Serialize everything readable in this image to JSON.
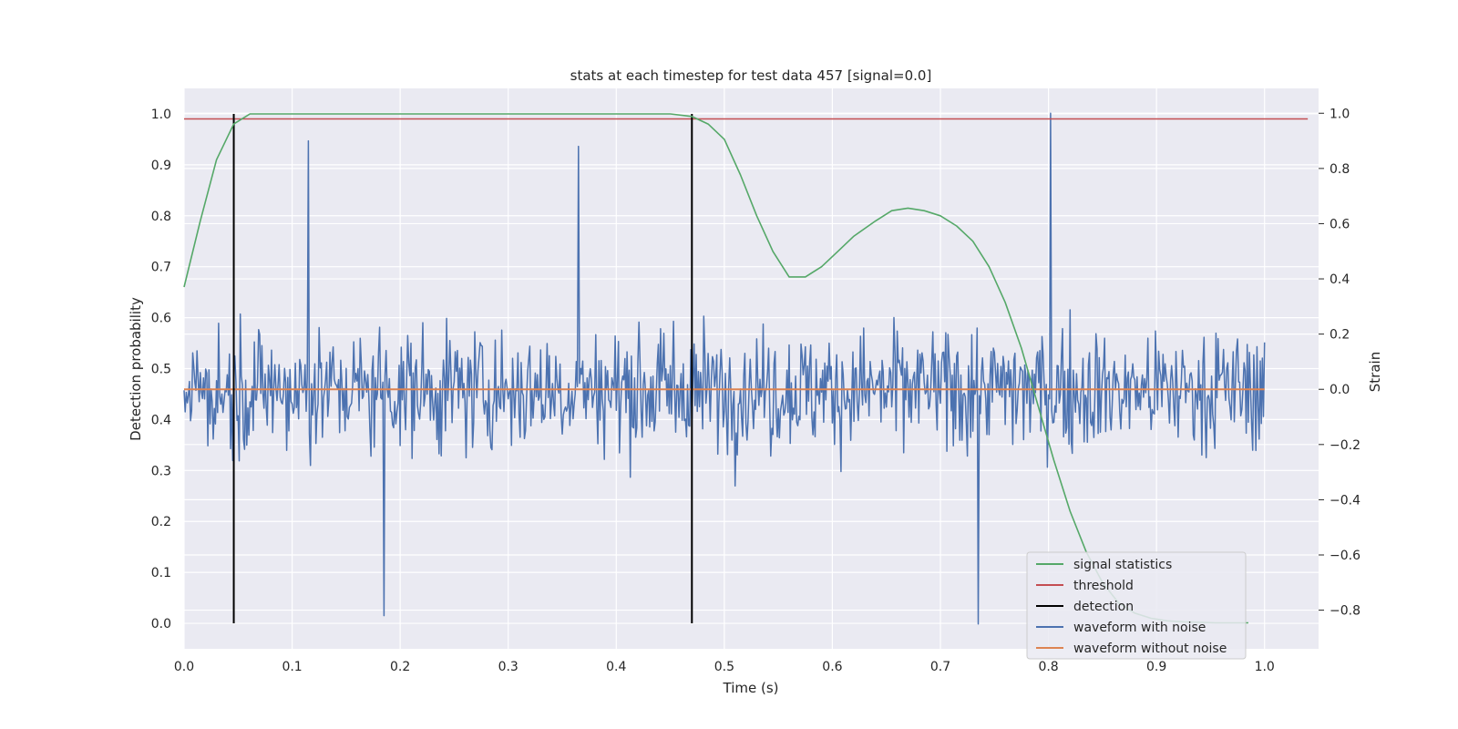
{
  "chart_data": {
    "type": "line",
    "title": "stats at each timestep for test data 457 [signal=0.0]",
    "xlabel": "Time (s)",
    "ylabel": "Detection probability",
    "ylabel_right": "Strain",
    "xlim": [
      0.0,
      1.05
    ],
    "ylim": [
      -0.05,
      1.05
    ],
    "ylim_right": [
      -0.94,
      1.09
    ],
    "x_ticks": [
      "0.0",
      "0.1",
      "0.2",
      "0.3",
      "0.4",
      "0.5",
      "0.6",
      "0.7",
      "0.8",
      "0.9",
      "1.0"
    ],
    "y_ticks": [
      "0.0",
      "0.1",
      "0.2",
      "0.3",
      "0.4",
      "0.5",
      "0.6",
      "0.7",
      "0.8",
      "0.9",
      "1.0"
    ],
    "y_ticks_right": [
      "−0.8",
      "−0.6",
      "−0.4",
      "−0.2",
      "0.0",
      "0.2",
      "0.4",
      "0.6",
      "0.8",
      "1.0"
    ],
    "grid": true,
    "legend_position": "lower-right",
    "series": [
      {
        "name": "signal statistics",
        "axis": "left",
        "color": "#55a868",
        "x": [
          0.0,
          0.015,
          0.03,
          0.046,
          0.061,
          0.076,
          0.09,
          0.2,
          0.3,
          0.4,
          0.45,
          0.47,
          0.485,
          0.5,
          0.515,
          0.53,
          0.545,
          0.56,
          0.575,
          0.59,
          0.605,
          0.62,
          0.64,
          0.655,
          0.67,
          0.685,
          0.7,
          0.715,
          0.73,
          0.745,
          0.76,
          0.775,
          0.79,
          0.805,
          0.82,
          0.835,
          0.85,
          0.865,
          0.88,
          0.895,
          0.91,
          0.925,
          0.94,
          0.955,
          0.97,
          0.985
        ],
        "values": [
          0.66,
          0.79,
          0.91,
          0.98,
          1.0,
          1.0,
          1.0,
          1.0,
          1.0,
          1.0,
          1.0,
          0.995,
          0.98,
          0.95,
          0.88,
          0.8,
          0.73,
          0.68,
          0.68,
          0.7,
          0.73,
          0.76,
          0.79,
          0.81,
          0.815,
          0.81,
          0.8,
          0.78,
          0.75,
          0.7,
          0.63,
          0.54,
          0.43,
          0.32,
          0.22,
          0.14,
          0.08,
          0.04,
          0.02,
          0.01,
          0.005,
          0.003,
          0.002,
          0.001,
          0.001,
          0.001
        ]
      },
      {
        "name": "threshold",
        "axis": "left",
        "color": "#c44e52",
        "x": [
          0.0,
          1.04
        ],
        "values": [
          0.99,
          0.99
        ]
      },
      {
        "name": "detection",
        "axis": "left",
        "color": "#000000",
        "x": [
          0.046,
          0.47
        ],
        "values": [
          1.0,
          1.0
        ]
      },
      {
        "name": "waveform with noise",
        "axis": "right",
        "color": "#4c72b0",
        "samples": 1000,
        "x_range": [
          0.0,
          1.0
        ],
        "amplitude": 0.3,
        "peaks": [
          {
            "x": 0.115,
            "value": 0.9
          },
          {
            "x": 0.185,
            "value": -0.82
          },
          {
            "x": 0.365,
            "value": 0.88
          },
          {
            "x": 0.735,
            "value": -0.85
          },
          {
            "x": 0.802,
            "value": 1.0
          }
        ]
      },
      {
        "name": "waveform without noise",
        "axis": "right",
        "color": "#dd8452",
        "x": [
          0.0,
          1.0
        ],
        "values": [
          0.0,
          0.0
        ]
      }
    ]
  }
}
